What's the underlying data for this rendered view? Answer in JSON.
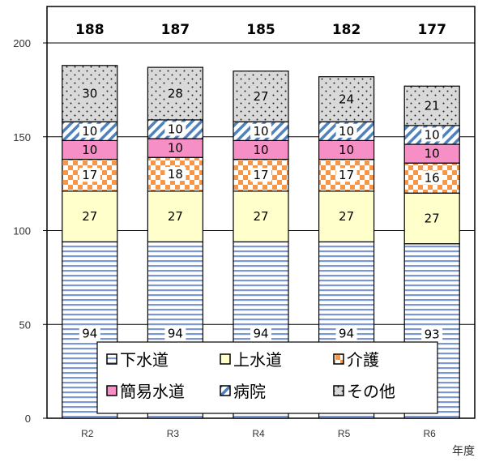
{
  "chart_data": {
    "type": "bar",
    "stacked": true,
    "categories": [
      "R2",
      "R3",
      "R4",
      "R5",
      "R6"
    ],
    "totals": [
      188,
      187,
      185,
      182,
      177
    ],
    "series": [
      {
        "name": "下水道",
        "values": [
          94,
          94,
          94,
          94,
          93
        ],
        "pattern": "hlines",
        "color": "#6f8fd0"
      },
      {
        "name": "上水道",
        "values": [
          27,
          27,
          27,
          27,
          27
        ],
        "pattern": "solid",
        "color": "#ffffcc"
      },
      {
        "name": "介護",
        "values": [
          17,
          18,
          17,
          17,
          16
        ],
        "pattern": "checker",
        "color": "#f79646"
      },
      {
        "name": "簡易水道",
        "values": [
          10,
          10,
          10,
          10,
          10
        ],
        "pattern": "solid",
        "color": "#f78fc7"
      },
      {
        "name": "病院",
        "values": [
          10,
          10,
          10,
          10,
          10
        ],
        "pattern": "diagonal",
        "color": "#4f81bd"
      },
      {
        "name": "その他",
        "values": [
          30,
          28,
          27,
          24,
          21
        ],
        "pattern": "dots",
        "color": "#d9d9d9"
      }
    ],
    "yticks": [
      0,
      50,
      100,
      150,
      200
    ],
    "ylim": [
      0,
      200
    ],
    "xlabel": "年度",
    "grid": true,
    "legend_position": "bottom-inside",
    "legend_order": [
      "下水道",
      "上水道",
      "介護",
      "簡易水道",
      "病院",
      "その他"
    ]
  }
}
